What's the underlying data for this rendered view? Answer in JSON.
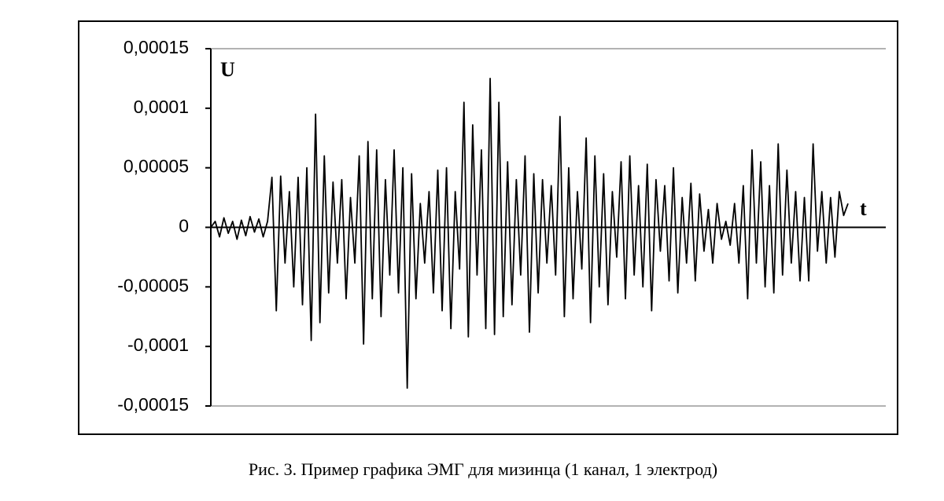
{
  "chart_data": {
    "type": "line",
    "caption": "Рис. 3. Пример графика ЭМГ для мизинца (1 канал, 1 электрод)",
    "y_label": "U",
    "x_label": "t",
    "color": "#000000",
    "ylim": [
      -0.00015,
      0.00015
    ],
    "yticks": [
      {
        "value": -0.00015,
        "label": "-0,00015"
      },
      {
        "value": -0.0001,
        "label": "-0,0001"
      },
      {
        "value": -5e-05,
        "label": "-0,00005"
      },
      0,
      {
        "value": 5e-05,
        "label": "0,00005"
      },
      {
        "value": 0.0001,
        "label": "0,0001"
      },
      {
        "value": 0.00015,
        "label": "0,00015"
      }
    ],
    "values": [
      0,
      5e-06,
      -8e-06,
      8e-06,
      -5e-06,
      5e-06,
      -1e-05,
      6e-06,
      -7e-06,
      9e-06,
      -4e-06,
      7e-06,
      -8e-06,
      5e-06,
      4.2e-05,
      -7e-05,
      4.3e-05,
      -3e-05,
      3e-05,
      -5e-05,
      4.2e-05,
      -6.5e-05,
      5e-05,
      -9.5e-05,
      9.5e-05,
      -8e-05,
      6e-05,
      -5.5e-05,
      3.8e-05,
      -3e-05,
      4e-05,
      -6e-05,
      2.5e-05,
      -3e-05,
      6e-05,
      -9.8e-05,
      7.2e-05,
      -6e-05,
      6.5e-05,
      -7.5e-05,
      4e-05,
      -4e-05,
      6.5e-05,
      -5.5e-05,
      5e-05,
      -0.000135,
      4.5e-05,
      -6e-05,
      2e-05,
      -3e-05,
      3e-05,
      -5.5e-05,
      4.8e-05,
      -7e-05,
      5e-05,
      -8.5e-05,
      3e-05,
      -3.5e-05,
      0.000105,
      -9.2e-05,
      8.6e-05,
      -4e-05,
      6.5e-05,
      -8.5e-05,
      0.000125,
      -9e-05,
      0.000105,
      -7.5e-05,
      5.5e-05,
      -6.5e-05,
      4e-05,
      -4e-05,
      6e-05,
      -8.8e-05,
      4.5e-05,
      -5.5e-05,
      4e-05,
      -3e-05,
      3.5e-05,
      -4e-05,
      9.3e-05,
      -7.5e-05,
      5e-05,
      -6e-05,
      3e-05,
      -3.5e-05,
      7.5e-05,
      -8e-05,
      6e-05,
      -5e-05,
      4.5e-05,
      -6.5e-05,
      3e-05,
      -2.5e-05,
      5.5e-05,
      -6e-05,
      6e-05,
      -4e-05,
      3.5e-05,
      -5e-05,
      5.3e-05,
      -7e-05,
      4e-05,
      -2e-05,
      3.5e-05,
      -4.5e-05,
      5e-05,
      -5.5e-05,
      2.5e-05,
      -3e-05,
      3.7e-05,
      -4.5e-05,
      2.8e-05,
      -2e-05,
      1.5e-05,
      -3e-05,
      2e-05,
      -1e-05,
      5e-06,
      -1.5e-05,
      2e-05,
      -3e-05,
      3.5e-05,
      -6e-05,
      6.5e-05,
      -3e-05,
      5.5e-05,
      -5e-05,
      3.5e-05,
      -5.5e-05,
      7e-05,
      -4e-05,
      4.8e-05,
      -3e-05,
      3e-05,
      -4.5e-05,
      2.5e-05,
      -4.5e-05,
      7e-05,
      -2e-05,
      3e-05,
      -3e-05,
      2.5e-05,
      -2.5e-05,
      3e-05,
      1e-05,
      2e-05
    ]
  }
}
